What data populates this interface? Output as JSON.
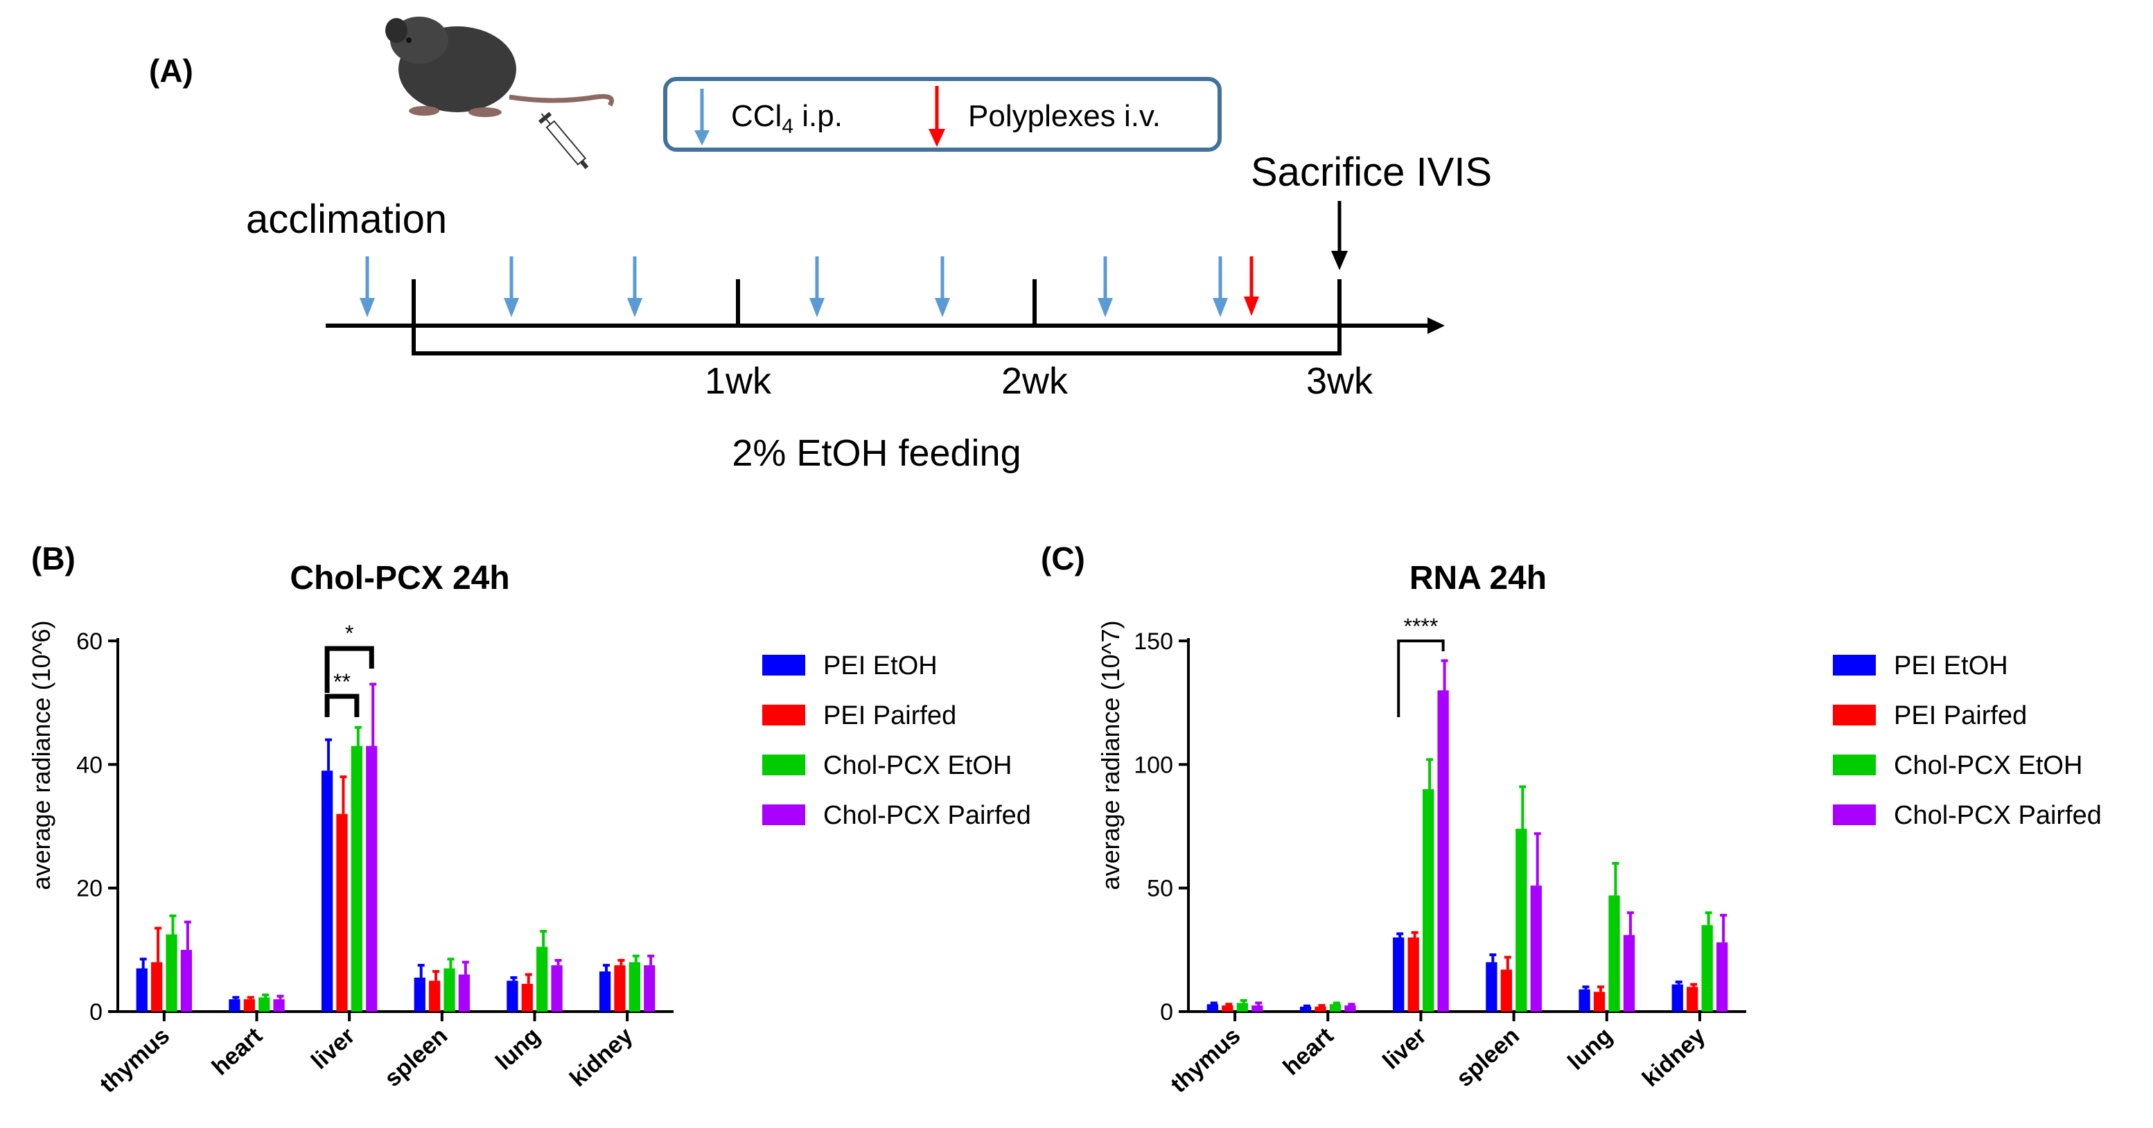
{
  "panel_a": {
    "label": "(A)",
    "legend": {
      "ccl4_prefix": "CCl",
      "ccl4_sub": "4",
      "ccl4_suffix": " i.p.",
      "polyplex": "Polyplexes i.v.",
      "ccl4_color": "#5b9bd5",
      "polyplex_color": "#ff0000"
    },
    "acclimation": "acclimation",
    "sacrifice": "Sacrifice IVIS",
    "ticks": [
      "1wk",
      "2wk",
      "3wk"
    ],
    "feeding": "2% EtOH feeding",
    "mouse_icon": "mouse-with-syringe-icon"
  },
  "panels": [
    {
      "label": "(B)",
      "title": "Chol-PCX 24h",
      "ylabel": "average radiance (10^6)",
      "yticks": [
        "0",
        "20",
        "40",
        "60"
      ],
      "significance": [
        "*",
        "**"
      ]
    },
    {
      "label": "(C)",
      "title": "RNA 24h",
      "ylabel": "average radiance (10^7)",
      "yticks": [
        "0",
        "50",
        "100",
        "150"
      ],
      "significance": [
        "****"
      ]
    }
  ],
  "chart_data": [
    {
      "type": "bar",
      "title": "Chol-PCX 24h",
      "xlabel": "",
      "ylabel": "average radiance (10^6)",
      "ylim": [
        0,
        60
      ],
      "categories": [
        "thymus",
        "heart",
        "liver",
        "spleen",
        "lung",
        "kidney"
      ],
      "series": [
        {
          "name": "PEI EtOH",
          "color": "#0000ff",
          "values": [
            7,
            2,
            39,
            5.5,
            5,
            6.5
          ],
          "errors": [
            1.5,
            0.3,
            5,
            2,
            0.5,
            1
          ]
        },
        {
          "name": "PEI Pairfed",
          "color": "#ff0000",
          "values": [
            8,
            2,
            32,
            5,
            4.5,
            7.5
          ],
          "errors": [
            5.5,
            0.3,
            6,
            1.5,
            1.5,
            0.8
          ]
        },
        {
          "name": "Chol-PCX EtOH",
          "color": "#00cc00",
          "values": [
            12.5,
            2.3,
            43,
            7,
            10.5,
            8
          ],
          "errors": [
            3,
            0.4,
            3,
            1.5,
            2.5,
            1
          ]
        },
        {
          "name": "Chol-PCX Pairfed",
          "color": "#aa00ff",
          "values": [
            10,
            2,
            43,
            6,
            7.5,
            7.5
          ],
          "errors": [
            4.5,
            0.5,
            10,
            2,
            0.8,
            1.5
          ]
        }
      ]
    },
    {
      "type": "bar",
      "title": "RNA 24h",
      "xlabel": "",
      "ylabel": "average radiance (10^7)",
      "ylim": [
        0,
        150
      ],
      "categories": [
        "thymus",
        "heart",
        "liver",
        "spleen",
        "lung",
        "kidney"
      ],
      "series": [
        {
          "name": "PEI EtOH",
          "color": "#0000ff",
          "values": [
            3,
            2,
            30,
            20,
            9,
            11
          ],
          "errors": [
            0.5,
            0.3,
            1.5,
            3,
            1,
            1
          ]
        },
        {
          "name": "PEI Pairfed",
          "color": "#ff0000",
          "values": [
            2.5,
            2,
            30,
            17,
            8,
            10
          ],
          "errors": [
            0.5,
            0.5,
            2,
            5,
            2,
            1
          ]
        },
        {
          "name": "Chol-PCX EtOH",
          "color": "#00cc00",
          "values": [
            3.5,
            3,
            90,
            74,
            47,
            35
          ],
          "errors": [
            1,
            0.5,
            12,
            17,
            13,
            5
          ]
        },
        {
          "name": "Chol-PCX Pairfed",
          "color": "#aa00ff",
          "values": [
            2.5,
            2.5,
            130,
            51,
            31,
            28
          ],
          "errors": [
            1,
            0.5,
            12,
            21,
            9,
            11
          ]
        }
      ]
    }
  ]
}
